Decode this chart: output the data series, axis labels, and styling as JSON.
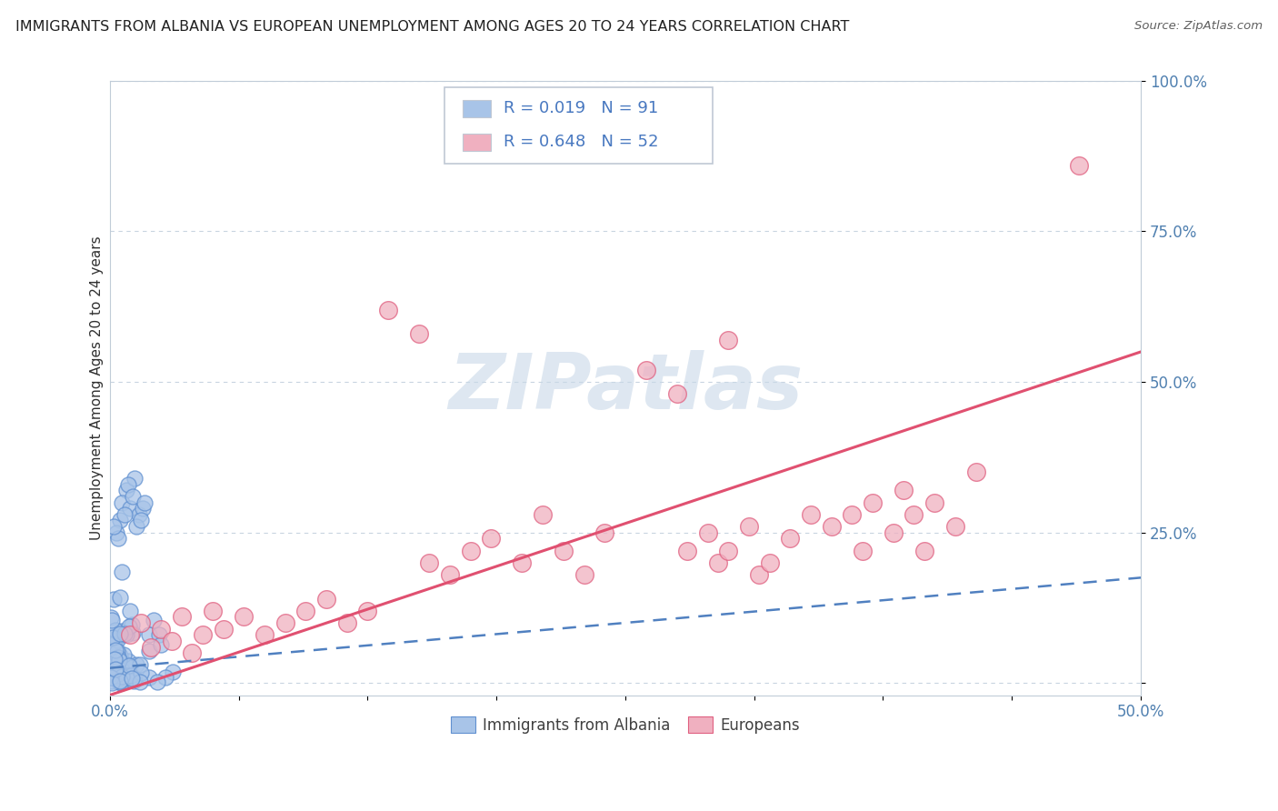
{
  "title": "IMMIGRANTS FROM ALBANIA VS EUROPEAN UNEMPLOYMENT AMONG AGES 20 TO 24 YEARS CORRELATION CHART",
  "source": "Source: ZipAtlas.com",
  "ylabel": "Unemployment Among Ages 20 to 24 years",
  "xlim": [
    0.0,
    0.5
  ],
  "ylim": [
    -0.02,
    1.0
  ],
  "yticks": [
    0.0,
    0.25,
    0.5,
    0.75,
    1.0
  ],
  "yticklabels": [
    "",
    "25.0%",
    "50.0%",
    "75.0%",
    "100.0%"
  ],
  "blue_color": "#a8c4e8",
  "pink_color": "#f0b0c0",
  "blue_edge_color": "#6090d0",
  "pink_edge_color": "#e06080",
  "blue_line_color": "#5080c0",
  "pink_line_color": "#e05070",
  "title_color": "#202020",
  "source_color": "#606060",
  "tick_color": "#5080b0",
  "ylabel_color": "#303030",
  "grid_color": "#c8d4e0",
  "spine_color": "#c0ccd8",
  "bg_color": "#ffffff",
  "watermark_color": "#c8d8e8",
  "legend_edge_color": "#c0c8d4",
  "legend_text_color": "#4878c0",
  "blue_trend_x": [
    0.0,
    0.5
  ],
  "blue_trend_y": [
    0.025,
    0.175
  ],
  "pink_trend_x": [
    0.0,
    0.5
  ],
  "pink_trend_y": [
    -0.02,
    0.55
  ]
}
